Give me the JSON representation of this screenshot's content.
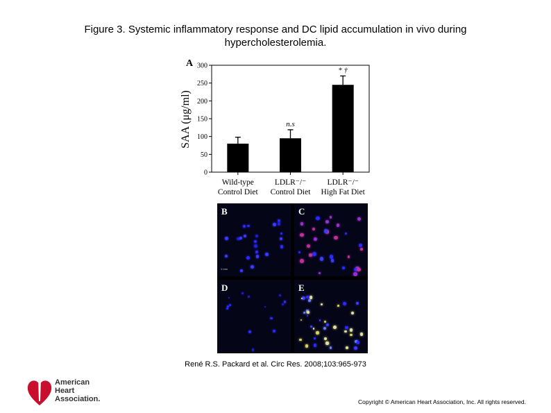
{
  "figure": {
    "title_line1": "Figure 3. Systemic inflammatory response and DC lipid accumulation in vivo during",
    "title_line2": "hypercholesterolemia.",
    "citation": "René R.S. Packard et al. Circ Res. 2008;103:965-973",
    "copyright": "Copyright © American Heart Association, Inc. All rights reserved."
  },
  "logo": {
    "line1": "American",
    "line2": "Heart",
    "line3": "Association."
  },
  "panels": [
    "B",
    "C",
    "D",
    "E"
  ],
  "scale_text": "1 mm",
  "chart_data": {
    "type": "bar",
    "panel_label": "A",
    "ylabel": "SAA (μg/ml)",
    "ylim": [
      0,
      300
    ],
    "yticks": [
      0,
      50,
      100,
      150,
      200,
      250,
      300
    ],
    "categories": [
      [
        "Wild-type",
        "Control Diet"
      ],
      [
        "LDLR⁻/⁻",
        "Control Diet"
      ],
      [
        "LDLR⁻/⁻",
        "High Fat Diet"
      ]
    ],
    "values": [
      80,
      95,
      245
    ],
    "errors": [
      18,
      24,
      25
    ],
    "annotations": [
      "",
      "n.s",
      "* †"
    ],
    "colors": {
      "bar": "#000000",
      "axis": "#000000"
    }
  }
}
